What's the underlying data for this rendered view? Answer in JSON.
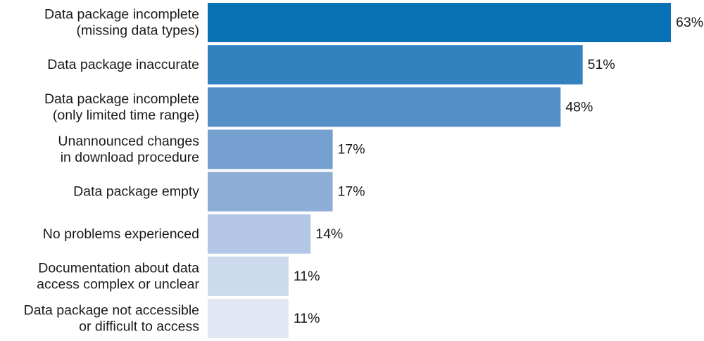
{
  "chart_data": {
    "type": "bar",
    "orientation": "horizontal",
    "categories": [
      [
        "Data package incomplete",
        "(missing data types)"
      ],
      [
        "Data package inaccurate"
      ],
      [
        "Data package incomplete",
        "(only limited time range)"
      ],
      [
        "Unannounced changes",
        "in download procedure"
      ],
      [
        "Data package empty"
      ],
      [
        "No problems experienced"
      ],
      [
        "Documentation about data",
        "access complex or unclear"
      ],
      [
        "Data package not accessible",
        "or difficult to access"
      ]
    ],
    "values": [
      63,
      51,
      48,
      17,
      17,
      14,
      11,
      11
    ],
    "value_labels": [
      "63%",
      "51%",
      "48%",
      "17%",
      "17%",
      "14%",
      "11%",
      "11%"
    ],
    "unit": "%",
    "xlim": [
      0,
      63
    ],
    "colors": [
      "#0871b4",
      "#3382c0",
      "#5490c6",
      "#759fcf",
      "#8faed7",
      "#b3c6e5",
      "#ccdaee",
      "#e1e8f3"
    ],
    "grid": false,
    "legend": "none"
  }
}
